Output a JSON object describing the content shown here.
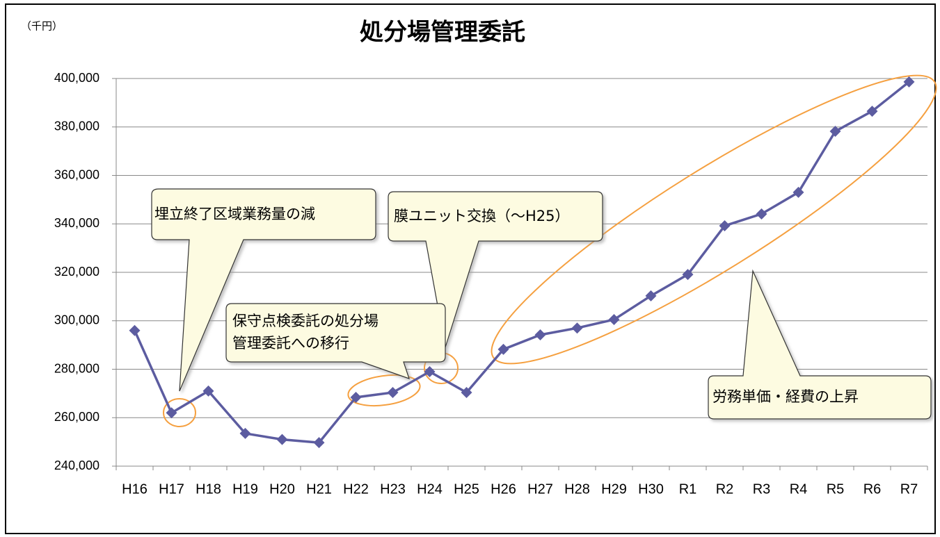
{
  "chart_data": {
    "type": "line",
    "title": "処分場管理委託",
    "unit": "（千円）",
    "categories": [
      "H16",
      "H17",
      "H18",
      "H19",
      "H20",
      "H21",
      "H22",
      "H23",
      "H24",
      "H25",
      "H26",
      "H27",
      "H28",
      "H29",
      "H30",
      "R1",
      "R2",
      "R3",
      "R4",
      "R5",
      "R6",
      "R7"
    ],
    "series": [
      {
        "name": "処分場管理委託",
        "color": "#5c5ca0",
        "values": [
          296000,
          262000,
          271000,
          253500,
          251000,
          249700,
          268400,
          270400,
          279000,
          270400,
          288200,
          294200,
          297000,
          300500,
          310300,
          319100,
          339200,
          344100,
          353000,
          378200,
          386500,
          398600
        ]
      }
    ],
    "ylim": [
      240000,
      400000
    ],
    "yticks": [
      {
        "value": 240000,
        "label": "240,000"
      },
      {
        "value": 260000,
        "label": "260,000"
      },
      {
        "value": 280000,
        "label": "280,000"
      },
      {
        "value": 300000,
        "label": "300,000"
      },
      {
        "value": 320000,
        "label": "320,000"
      },
      {
        "value": 340000,
        "label": "340,000"
      },
      {
        "value": 360000,
        "label": "360,000"
      },
      {
        "value": 380000,
        "label": "380,000"
      },
      {
        "value": 400000,
        "label": "400,000"
      }
    ],
    "grid": true,
    "annotations": [
      {
        "lines": [
          "埋立終了区域業務量の減"
        ]
      },
      {
        "lines": [
          "膜ユニット交換（～H25）"
        ]
      },
      {
        "lines": [
          "保守点検委託の処分場",
          "管理委託への移行"
        ]
      },
      {
        "lines": [
          "労務単価・経費の上昇"
        ]
      }
    ]
  }
}
